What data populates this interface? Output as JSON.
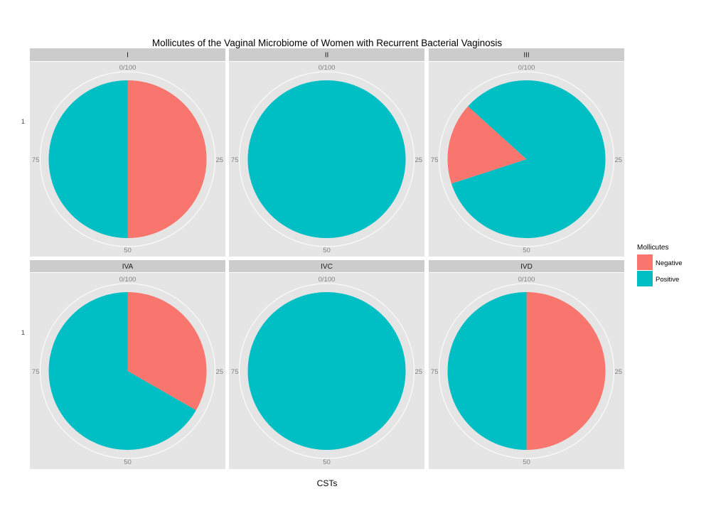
{
  "chart_data": {
    "type": "pie",
    "title": "Mollicutes of the Vaginal Microbiome of Women with Recurrent Bacterial Vaginosis",
    "xlabel": "CSTs",
    "y_tick_label": "1",
    "angular_ticks": [
      "0/100",
      "25",
      "50",
      "75"
    ],
    "legend": {
      "title": "Mollicutes",
      "position": "right",
      "entries": [
        {
          "name": "Negative",
          "color": "#F8766D"
        },
        {
          "name": "Positive",
          "color": "#00BFC4"
        }
      ]
    },
    "panels": [
      {
        "label": "I",
        "slices": [
          {
            "name": "Negative",
            "value": 50
          },
          {
            "name": "Positive",
            "value": 50
          }
        ]
      },
      {
        "label": "II",
        "slices": [
          {
            "name": "Negative",
            "value": 0
          },
          {
            "name": "Positive",
            "value": 100
          }
        ]
      },
      {
        "label": "III",
        "slices": [
          {
            "name": "Positive",
            "value": 70
          },
          {
            "name": "Negative",
            "value": 16.7
          },
          {
            "name": "Positive",
            "value": 13.3
          }
        ]
      },
      {
        "label": "IVA",
        "slices": [
          {
            "name": "Negative",
            "value": 33.3
          },
          {
            "name": "Positive",
            "value": 66.7
          }
        ]
      },
      {
        "label": "IVC",
        "slices": [
          {
            "name": "Negative",
            "value": 0
          },
          {
            "name": "Positive",
            "value": 100
          }
        ]
      },
      {
        "label": "IVD",
        "slices": [
          {
            "name": "Negative",
            "value": 50
          },
          {
            "name": "Positive",
            "value": 50
          }
        ]
      }
    ],
    "panel_background": "#E5E5E5",
    "strip_background": "#CCCCCC",
    "grid": true
  }
}
